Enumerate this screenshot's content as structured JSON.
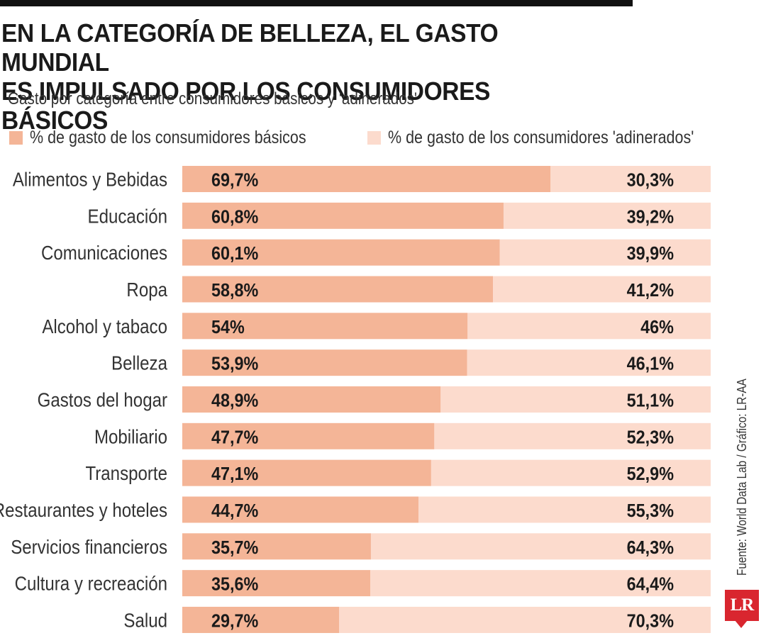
{
  "header": {
    "title_line1": "EN LA CATEGORÍA DE BELLEZA, EL GASTO MUNDIAL",
    "title_line2": "ES IMPULSADO POR LOS CONSUMIDORES BÁSICOS",
    "subtitle": "Gasto por categoría entre consumidores básicos y 'adinerados'"
  },
  "legend": {
    "basic": "% de gasto de los consumidores básicos",
    "wealthy": "% de gasto de los consumidores 'adinerados'"
  },
  "colors": {
    "basic": "#f4b597",
    "wealthy": "#fcdbcd",
    "rule": "#111111",
    "logo": "#d9262f"
  },
  "chart_data": {
    "type": "bar",
    "orientation": "horizontal",
    "stacked": true,
    "title": "EN LA CATEGORÍA DE BELLEZA, EL GASTO MUNDIAL ES IMPULSADO POR LOS CONSUMIDORES BÁSICOS",
    "subtitle": "Gasto por categoría entre consumidores básicos y 'adinerados'",
    "xlim": [
      0,
      100
    ],
    "grid": false,
    "legend_position": "top",
    "categories": [
      "Alimentos y Bebidas",
      "Educación",
      "Comunicaciones",
      "Ropa",
      "Alcohol y tabaco",
      "Belleza",
      "Gastos del hogar",
      "Mobiliario",
      "Transporte",
      "Restaurantes y hoteles",
      "Servicios financieros",
      "Cultura y recreación",
      "Salud"
    ],
    "series": [
      {
        "name": "% de gasto de los consumidores básicos",
        "color": "#f4b597",
        "values": [
          69.7,
          60.8,
          60.1,
          58.8,
          54,
          53.9,
          48.9,
          47.7,
          47.1,
          44.7,
          35.7,
          35.6,
          29.7
        ],
        "labels": [
          "69,7%",
          "60,8%",
          "60,1%",
          "58,8%",
          "54%",
          "53,9%",
          "48,9%",
          "47,7%",
          "47,1%",
          "44,7%",
          "35,7%",
          "35,6%",
          "29,7%"
        ]
      },
      {
        "name": "% de gasto de los consumidores 'adinerados'",
        "color": "#fcdbcd",
        "values": [
          30.3,
          39.2,
          39.9,
          41.2,
          46,
          46.1,
          51.1,
          52.3,
          52.9,
          55.3,
          64.3,
          64.4,
          70.3
        ],
        "labels": [
          "30,3%",
          "39,2%",
          "39,9%",
          "41,2%",
          "46%",
          "46,1%",
          "51,1%",
          "52,3%",
          "52,9%",
          "55,3%",
          "64,3%",
          "64,4%",
          "70,3%"
        ]
      }
    ]
  },
  "footer": {
    "source": "Fuente: World Data Lab / Gráfico: LR-AA",
    "logo_text": "LR"
  }
}
